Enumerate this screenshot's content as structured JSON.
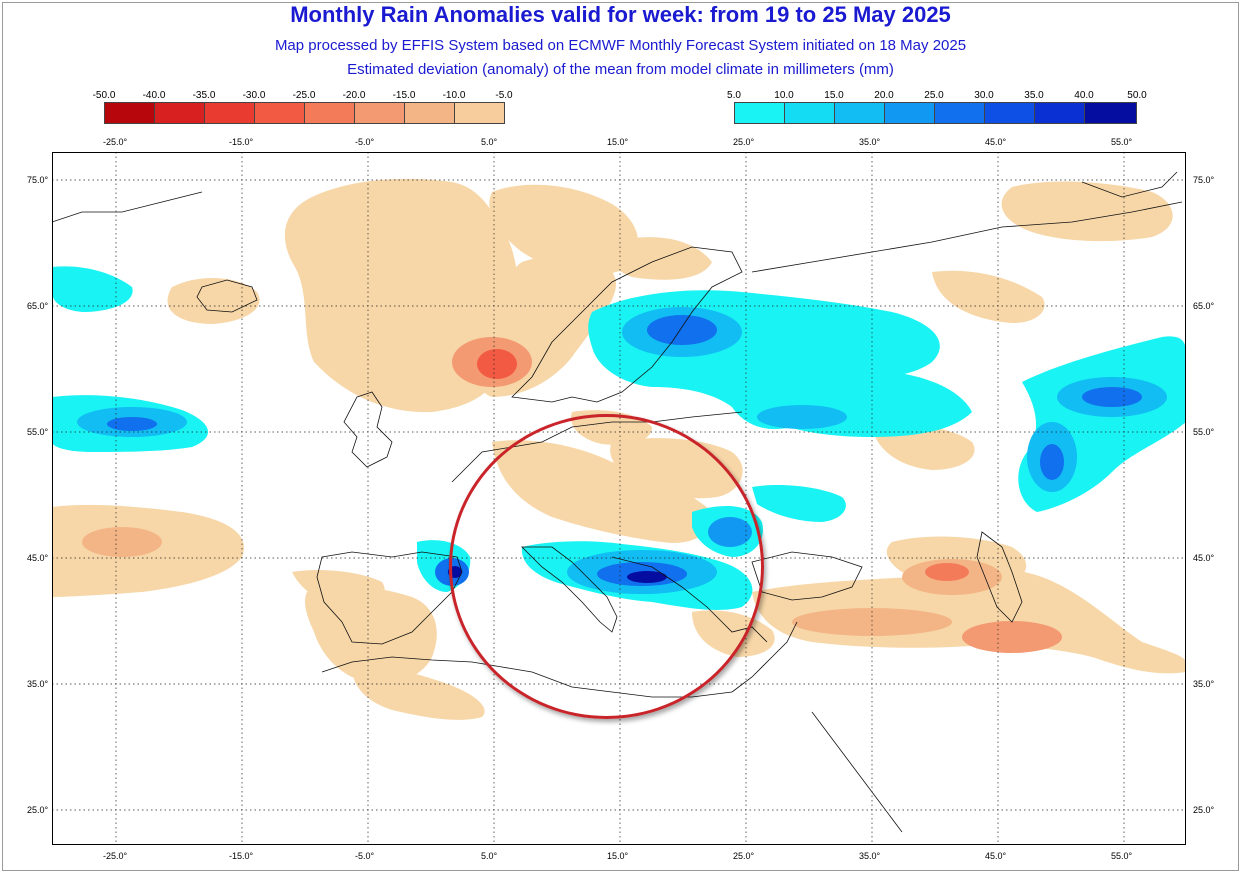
{
  "header": {
    "title": "Monthly Rain Anomalies valid for week: from 19 to 25 May 2025",
    "subtitle_1": "Map processed by EFFIS System based on ECMWF Monthly Forecast System initiated on 18 May 2025",
    "subtitle_2": "Estimated deviation (anomaly) of the mean from model climate in millimeters (mm)"
  },
  "legend_negative": {
    "labels": [
      "-50.0",
      "-40.0",
      "-35.0",
      "-30.0",
      "-25.0",
      "-20.0",
      "-15.0",
      "-10.0",
      "-5.0"
    ],
    "colors": [
      "#b8070c",
      "#d92020",
      "#ea3b31",
      "#f25a43",
      "#f47b5a",
      "#f39a72",
      "#f4b586",
      "#f7cd9e"
    ]
  },
  "legend_positive": {
    "labels": [
      "5.0",
      "10.0",
      "15.0",
      "20.0",
      "25.0",
      "30.0",
      "35.0",
      "40.0",
      "50.0"
    ],
    "colors": [
      "#19f3f3",
      "#14dcf3",
      "#11bdf3",
      "#1198f3",
      "#1170ee",
      "#0e4fe6",
      "#0a2fd2",
      "#050ca0"
    ]
  },
  "axes": {
    "lon_ticks": [
      "-25.0°",
      "-15.0°",
      "-5.0°",
      "5.0°",
      "15.0°",
      "25.0°",
      "35.0°",
      "45.0°",
      "55.0°"
    ],
    "lat_ticks": [
      "75.0°",
      "65.0°",
      "55.0°",
      "45.0°",
      "35.0°",
      "25.0°"
    ]
  },
  "annotation": {
    "ring_color": "#c9242a",
    "note": ""
  },
  "colors": {
    "title": "#1a1ad0",
    "land_dry": "#f7d7a8",
    "grid": "#222222"
  }
}
